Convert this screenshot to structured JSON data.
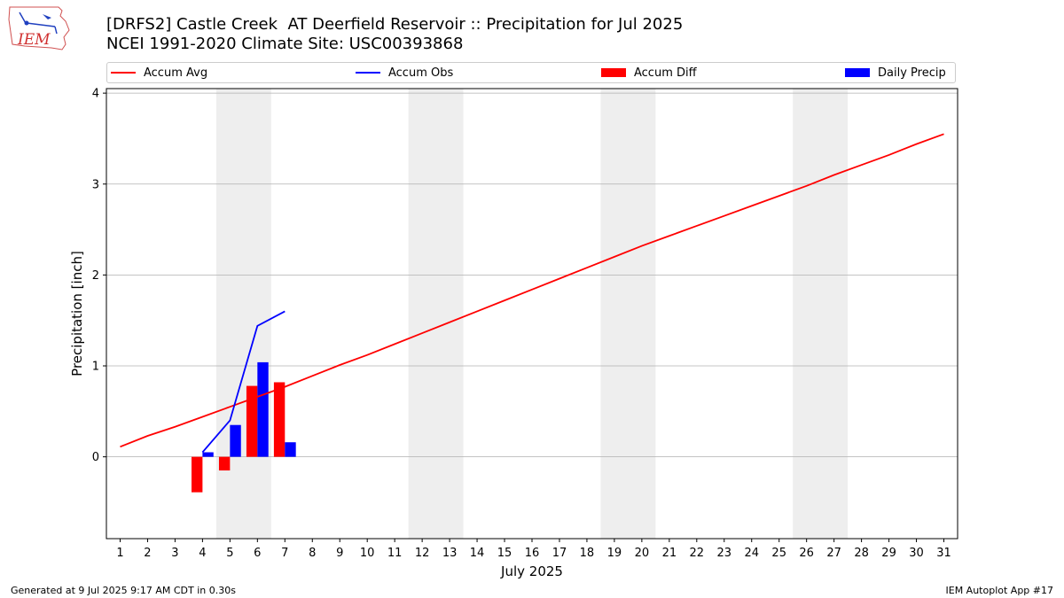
{
  "header": {
    "title_line1": "[DRFS2] Castle Creek  AT Deerfield Reservoir :: Precipitation for Jul 2025",
    "title_line2": "NCEI 1991-2020 Climate Site: USC00393868",
    "logo_text": "IEM"
  },
  "footer": {
    "left": "Generated at 9 Jul 2025 9:17 AM CDT in 0.30s",
    "right": "IEM Autoplot App #17"
  },
  "colors": {
    "avg": "#ff0000",
    "obs": "#0000ff",
    "diff": "#ff0000",
    "daily": "#0000ff",
    "weekend": "#eeeeee",
    "grid": "#b0b0b0"
  },
  "chart_data": {
    "type": "bar",
    "title": "[DRFS2] Castle Creek  AT Deerfield Reservoir :: Precipitation for Jul 2025",
    "xlabel": "July 2025",
    "ylabel": "Precipitation [inch]",
    "xlim": [
      0.5,
      31.5
    ],
    "ylim": [
      -0.9,
      4.05
    ],
    "yticks": [
      0,
      1,
      2,
      3,
      4
    ],
    "days": [
      1,
      2,
      3,
      4,
      5,
      6,
      7,
      8,
      9,
      10,
      11,
      12,
      13,
      14,
      15,
      16,
      17,
      18,
      19,
      20,
      21,
      22,
      23,
      24,
      25,
      26,
      27,
      28,
      29,
      30,
      31
    ],
    "weekend_spans": [
      [
        4.5,
        6.5
      ],
      [
        11.5,
        13.5
      ],
      [
        18.5,
        20.5
      ],
      [
        25.5,
        27.5
      ]
    ],
    "legend": {
      "position": "top",
      "items": [
        "Accum Avg",
        "Accum Obs",
        "Accum Diff",
        "Daily Precip"
      ]
    },
    "series": [
      {
        "name": "Accum Avg",
        "kind": "line",
        "x": [
          1,
          2,
          3,
          4,
          5,
          6,
          7,
          8,
          9,
          10,
          11,
          12,
          13,
          14,
          15,
          16,
          17,
          18,
          19,
          20,
          21,
          22,
          23,
          24,
          25,
          26,
          27,
          28,
          29,
          30,
          31
        ],
        "values": [
          0.11,
          0.23,
          0.33,
          0.44,
          0.55,
          0.66,
          0.77,
          0.89,
          1.01,
          1.12,
          1.24,
          1.36,
          1.48,
          1.6,
          1.72,
          1.84,
          1.96,
          2.08,
          2.2,
          2.32,
          2.43,
          2.54,
          2.65,
          2.76,
          2.87,
          2.98,
          3.1,
          3.21,
          3.32,
          3.44,
          3.55
        ]
      },
      {
        "name": "Accum Obs",
        "kind": "line",
        "x": [
          4,
          5,
          6,
          7
        ],
        "values": [
          0.05,
          0.4,
          1.44,
          1.6
        ]
      },
      {
        "name": "Accum Diff",
        "kind": "bar",
        "x": [
          4,
          5,
          6,
          7
        ],
        "values": [
          -0.39,
          -0.15,
          0.78,
          0.82
        ]
      },
      {
        "name": "Daily Precip",
        "kind": "bar",
        "x": [
          4,
          5,
          6,
          7
        ],
        "values": [
          0.05,
          0.35,
          1.04,
          0.16
        ]
      }
    ]
  }
}
